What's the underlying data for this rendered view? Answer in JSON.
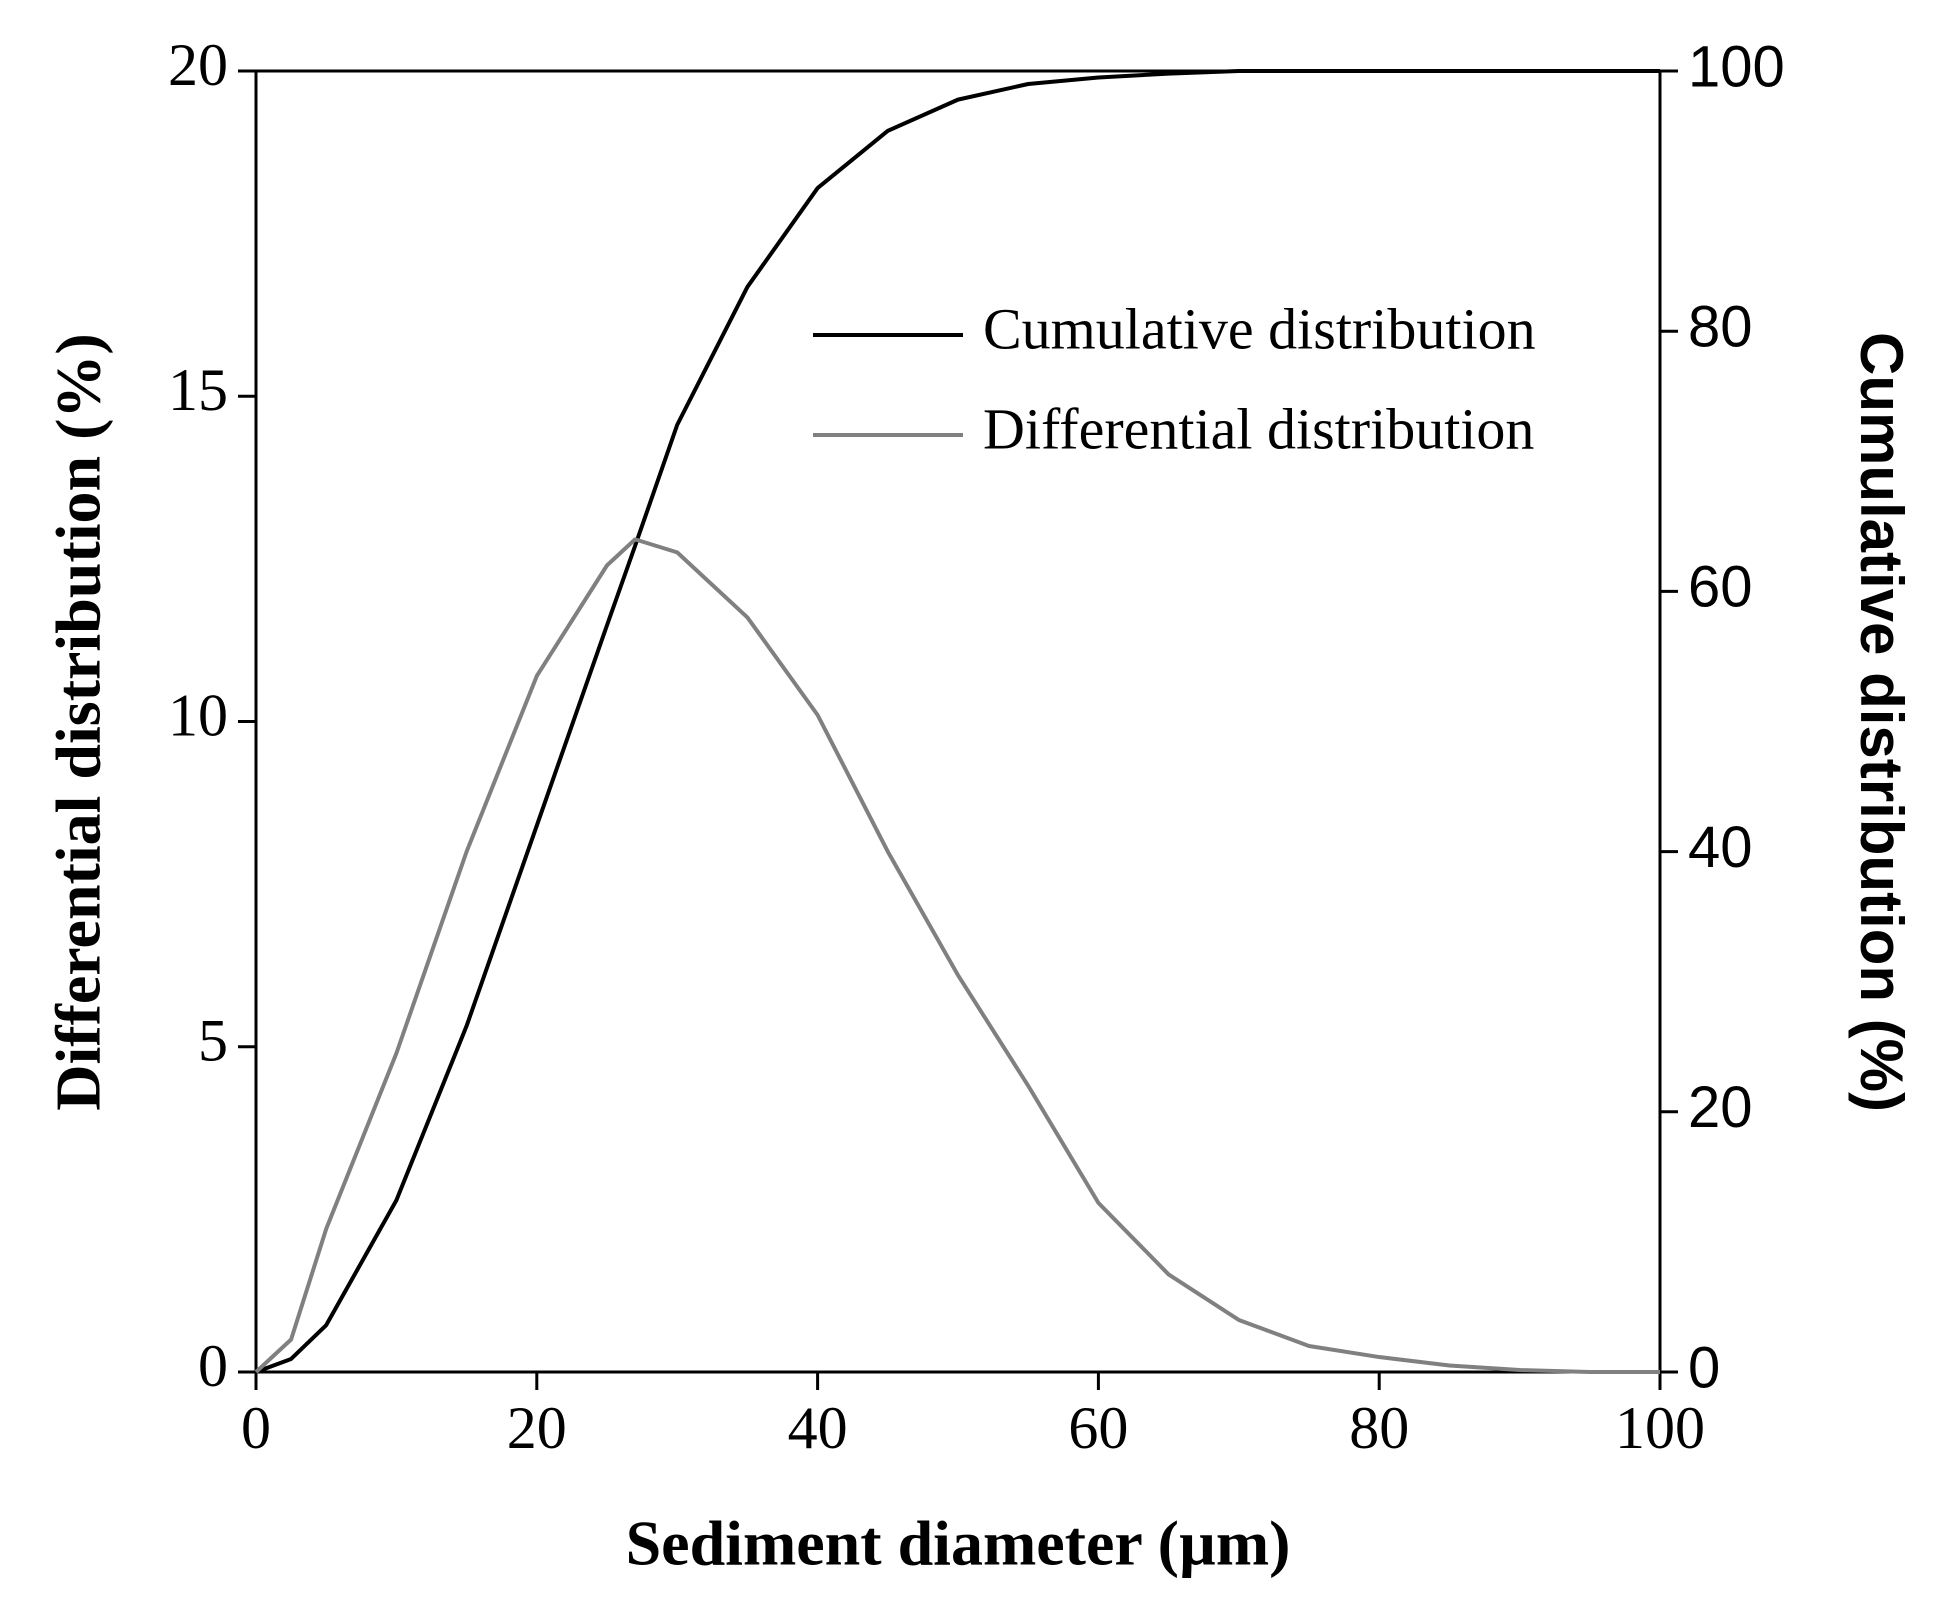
{
  "chart_data": {
    "type": "line",
    "xlabel": "Sediment diameter (µm)",
    "ylabel": "Differential distribution (%)",
    "y2label": "Cumulative distribution (%)",
    "x": [
      0,
      2.5,
      5,
      10,
      15,
      20,
      25,
      27,
      30,
      35,
      40,
      45,
      50,
      55,
      60,
      65,
      70,
      75,
      80,
      85,
      90,
      95,
      100
    ],
    "series": [
      {
        "name": "Cumulative distribution",
        "color": "#000000",
        "axis": "y2",
        "values": [
          0,
          1,
          3.6,
          13.2,
          26.6,
          42,
          57.4,
          63.5,
          72.8,
          83.4,
          91,
          95.4,
          97.8,
          99,
          99.5,
          99.8,
          100,
          100,
          100,
          100,
          100,
          100,
          100
        ]
      },
      {
        "name": "Differential distribution",
        "color": "#808080",
        "values": [
          0,
          0.5,
          2.2,
          4.9,
          8.0,
          10.7,
          12.4,
          12.8,
          12.6,
          11.6,
          10.1,
          8.0,
          6.1,
          4.4,
          2.6,
          1.5,
          0.8,
          0.4,
          0.23,
          0.1,
          0.03,
          0,
          0
        ]
      }
    ],
    "xlim": [
      0,
      100
    ],
    "xticks": [
      0,
      20,
      40,
      60,
      80,
      100
    ],
    "ylim": [
      0,
      20
    ],
    "yticks": [
      0,
      5,
      10,
      15,
      20
    ],
    "y2lim": [
      0,
      100
    ],
    "y2ticks": [
      0,
      20,
      40,
      60,
      80,
      100
    ],
    "legend": "upper right"
  }
}
